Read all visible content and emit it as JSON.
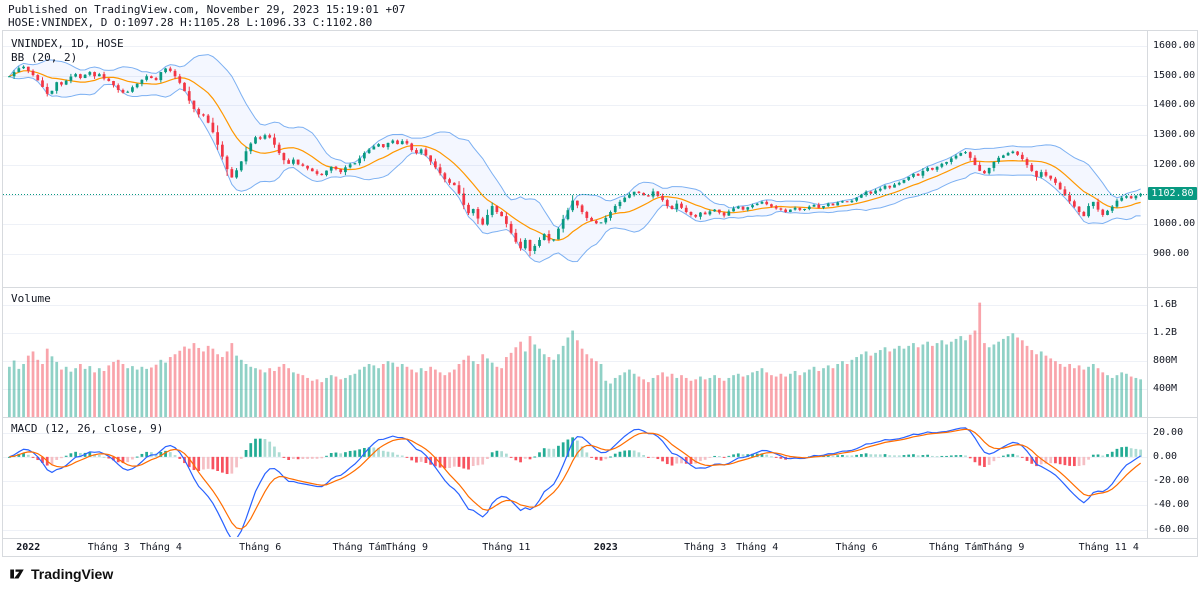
{
  "header": {
    "published_line": "Published on TradingView.com, November 29, 2023 15:19:01 +07",
    "symbol_line": "HOSE:VNINDEX, D O:1097.28 H:1105.28 L:1096.33 C:1102.80"
  },
  "footer": {
    "brand": "TradingView"
  },
  "chart_data": {
    "type": "candlestick+volume+macd",
    "symbol": "VNINDEX",
    "interval": "1D",
    "exchange": "HOSE",
    "ohlc": {
      "open": 1097.28,
      "high": 1105.28,
      "low": 1096.33,
      "close": 1102.8
    },
    "panes": {
      "main": {
        "legend": [
          "VNINDEX, 1D, HOSE",
          "BB (20, 2)"
        ],
        "y_range": [
          790,
          1650
        ],
        "ticks": [
          {
            "v": 1600,
            "label": "1600.00"
          },
          {
            "v": 1500,
            "label": "1500.00"
          },
          {
            "v": 1400,
            "label": "1400.00"
          },
          {
            "v": 1300,
            "label": "1300.00"
          },
          {
            "v": 1200,
            "label": "1200.00"
          },
          {
            "v": 1100,
            "label": "1100.00"
          },
          {
            "v": 1000,
            "label": "1000.00"
          },
          {
            "v": 900,
            "label": "900.00"
          }
        ],
        "last_price": 1102.8,
        "last_price_label": "1102.80"
      },
      "volume": {
        "legend": "Volume",
        "y_range": [
          0,
          1850
        ],
        "ticks": [
          {
            "v": 1600,
            "label": "1.6B"
          },
          {
            "v": 1200,
            "label": "1.2B"
          },
          {
            "v": 800,
            "label": "800M"
          },
          {
            "v": 400,
            "label": "400M"
          }
        ]
      },
      "macd": {
        "legend": "MACD (12, 26, close, 9)",
        "y_range": [
          -66,
          32
        ],
        "params": {
          "fast": 12,
          "slow": 26,
          "source": "close",
          "signal": 9
        },
        "ticks": [
          {
            "v": 20,
            "label": "20.00"
          },
          {
            "v": 0,
            "label": "0.00"
          },
          {
            "v": -20,
            "label": "-20.00"
          },
          {
            "v": -40,
            "label": "-40.00"
          },
          {
            "v": -60,
            "label": "-60.00"
          }
        ]
      }
    },
    "x_ticks": [
      {
        "i": 4,
        "label": "2022",
        "bold": true
      },
      {
        "i": 21,
        "label": "Tháng 3"
      },
      {
        "i": 32,
        "label": "Tháng 4"
      },
      {
        "i": 53,
        "label": "Tháng 6"
      },
      {
        "i": 74,
        "label": "Tháng Tám"
      },
      {
        "i": 84,
        "label": "Tháng 9"
      },
      {
        "i": 105,
        "label": "Tháng 11"
      },
      {
        "i": 126,
        "label": "2023",
        "bold": true
      },
      {
        "i": 147,
        "label": "Tháng 3"
      },
      {
        "i": 158,
        "label": "Tháng 4"
      },
      {
        "i": 179,
        "label": "Tháng 6"
      },
      {
        "i": 200,
        "label": "Tháng Tám"
      },
      {
        "i": 210,
        "label": "Tháng 9"
      },
      {
        "i": 231,
        "label": "Tháng 11"
      },
      {
        "i": 238,
        "label": "4"
      }
    ],
    "bb": {
      "length": 20,
      "mult": 2
    },
    "sampling_days_per_bar": 2,
    "closes": [
      1498,
      1512,
      1525,
      1530,
      1516,
      1502,
      1484,
      1462,
      1439,
      1449,
      1478,
      1470,
      1483,
      1497,
      1505,
      1492,
      1503,
      1512,
      1498,
      1505,
      1490,
      1482,
      1468,
      1452,
      1443,
      1446,
      1461,
      1473,
      1486,
      1498,
      1492,
      1485,
      1512,
      1524,
      1516,
      1498,
      1476,
      1448,
      1416,
      1388,
      1370,
      1366,
      1342,
      1310,
      1268,
      1228,
      1186,
      1158,
      1182,
      1212,
      1246,
      1272,
      1293,
      1288,
      1300,
      1292,
      1268,
      1240,
      1216,
      1204,
      1218,
      1202,
      1197,
      1188,
      1179,
      1170,
      1166,
      1181,
      1194,
      1186,
      1176,
      1192,
      1202,
      1206,
      1222,
      1240,
      1252,
      1262,
      1270,
      1260,
      1274,
      1282,
      1270,
      1280,
      1272,
      1250,
      1240,
      1252,
      1232,
      1212,
      1192,
      1172,
      1152,
      1140,
      1132,
      1104,
      1066,
      1038,
      1052,
      1020,
      1000,
      1032,
      1062,
      1042,
      1028,
      1002,
      972,
      942,
      920,
      948,
      911,
      928,
      948,
      968,
      946,
      950,
      986,
      1018,
      1048,
      1080,
      1064,
      1042,
      1022,
      1012,
      1004,
      1007,
      1022,
      1042,
      1062,
      1076,
      1090,
      1100,
      1110,
      1106,
      1098,
      1094,
      1111,
      1096,
      1082,
      1062,
      1052,
      1070,
      1056,
      1042,
      1032,
      1026,
      1040,
      1034,
      1044,
      1050,
      1040,
      1030,
      1044,
      1054,
      1060,
      1050,
      1058,
      1065,
      1070,
      1076,
      1068,
      1060,
      1054,
      1050,
      1042,
      1050,
      1056,
      1049,
      1052,
      1060,
      1066,
      1056,
      1062,
      1070,
      1064,
      1074,
      1078,
      1075,
      1080,
      1090,
      1100,
      1110,
      1104,
      1114,
      1120,
      1130,
      1124,
      1134,
      1140,
      1150,
      1160,
      1170,
      1164,
      1180,
      1190,
      1184,
      1194,
      1204,
      1210,
      1222,
      1231,
      1240,
      1243,
      1224,
      1200,
      1180,
      1172,
      1190,
      1210,
      1224,
      1232,
      1240,
      1245,
      1234,
      1220,
      1200,
      1180,
      1160,
      1176,
      1164,
      1154,
      1140,
      1118,
      1098,
      1078,
      1060,
      1042,
      1028,
      1062,
      1076,
      1050,
      1032,
      1046,
      1060,
      1080,
      1090,
      1095,
      1088,
      1097.28,
      1102.8
    ],
    "volumes_m": [
      720,
      810,
      690,
      760,
      880,
      940,
      820,
      760,
      980,
      870,
      790,
      680,
      720,
      650,
      700,
      760,
      690,
      730,
      640,
      700,
      660,
      740,
      790,
      820,
      760,
      700,
      730,
      680,
      720,
      690,
      710,
      750,
      820,
      780,
      860,
      900,
      950,
      1010,
      980,
      1060,
      990,
      940,
      1020,
      980,
      900,
      860,
      940,
      1060,
      880,
      820,
      760,
      720,
      700,
      680,
      640,
      700,
      660,
      720,
      760,
      700,
      640,
      620,
      600,
      560,
      520,
      540,
      500,
      560,
      600,
      580,
      540,
      560,
      600,
      620,
      680,
      720,
      760,
      740,
      700,
      760,
      800,
      780,
      720,
      760,
      720,
      680,
      640,
      700,
      660,
      720,
      680,
      640,
      600,
      640,
      680,
      760,
      820,
      880,
      800,
      760,
      900,
      840,
      780,
      720,
      700,
      860,
      920,
      1000,
      1080,
      940,
      1160,
      1040,
      980,
      900,
      860,
      820,
      900,
      1020,
      1140,
      1240,
      1100,
      980,
      900,
      840,
      800,
      760,
      520,
      480,
      560,
      600,
      640,
      680,
      620,
      580,
      540,
      500,
      560,
      600,
      640,
      580,
      620,
      560,
      600,
      560,
      520,
      540,
      580,
      540,
      560,
      600,
      560,
      520,
      560,
      600,
      620,
      580,
      600,
      640,
      660,
      700,
      640,
      600,
      580,
      620,
      580,
      620,
      660,
      600,
      640,
      680,
      720,
      660,
      700,
      740,
      700,
      760,
      800,
      760,
      820,
      860,
      900,
      940,
      880,
      920,
      960,
      1000,
      940,
      980,
      1020,
      980,
      1020,
      1060,
      1000,
      1040,
      1080,
      1020,
      1060,
      1100,
      1040,
      1080,
      1120,
      1160,
      1100,
      1180,
      1240,
      1640,
      1060,
      1000,
      1040,
      1080,
      1120,
      1160,
      1200,
      1140,
      1100,
      1020,
      960,
      900,
      940,
      880,
      840,
      800,
      760,
      720,
      760,
      700,
      740,
      680,
      720,
      760,
      700,
      640,
      600,
      560,
      600,
      640,
      620,
      580,
      560,
      540
    ],
    "colors": {
      "up": "#089981",
      "down": "#f23645",
      "vol_up": "rgba(8,153,129,0.45)",
      "vol_down": "rgba(242,54,69,0.45)",
      "bb_band": "#7cb0f2",
      "bb_basis": "#ff9800",
      "bb_fill": "rgba(41,98,255,0.05)",
      "macd_line": "#2962ff",
      "macd_signal": "#ff6d00",
      "hist_up": "#22ab94",
      "hist_up_f": "#acdcd4",
      "hist_dn": "#f7525f",
      "hist_dn_f": "#f5bfc4",
      "badge_bg": "#089981"
    }
  }
}
